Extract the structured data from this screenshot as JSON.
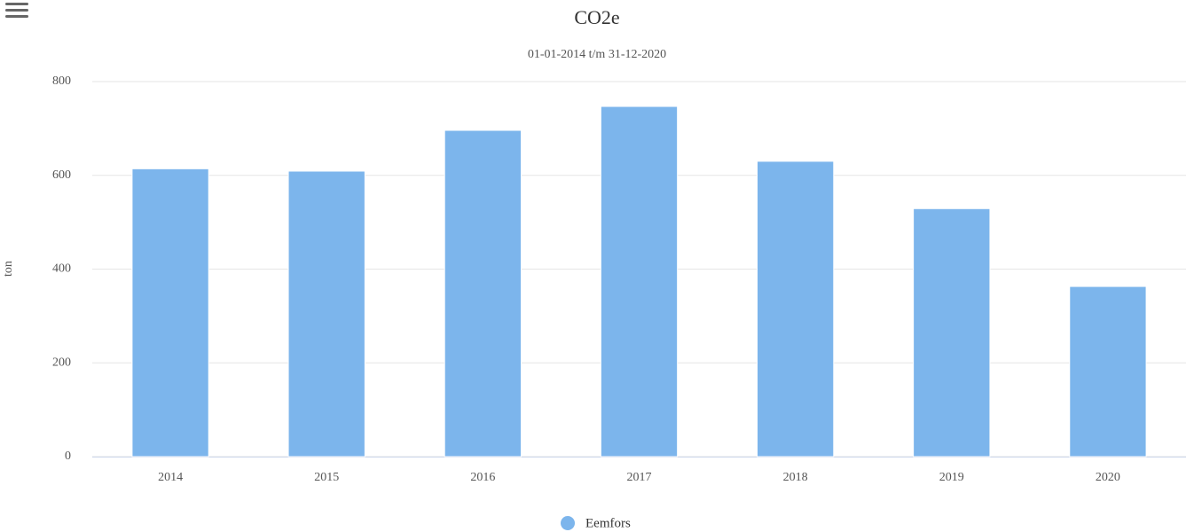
{
  "chart_data": {
    "type": "bar",
    "title": "CO2e",
    "subtitle": "01-01-2014 t/m 31-12-2020",
    "y_label": "ton",
    "categories": [
      "2014",
      "2015",
      "2016",
      "2017",
      "2018",
      "2019",
      "2020"
    ],
    "series": [
      {
        "name": "Eemfors",
        "color": "#7cb5ec",
        "values": [
          614,
          609,
          696,
          747,
          630,
          529,
          363
        ]
      }
    ],
    "ylim": [
      0,
      800
    ],
    "yticks": [
      0,
      200,
      400,
      600,
      800
    ],
    "grid": true,
    "legend": "bottom"
  }
}
